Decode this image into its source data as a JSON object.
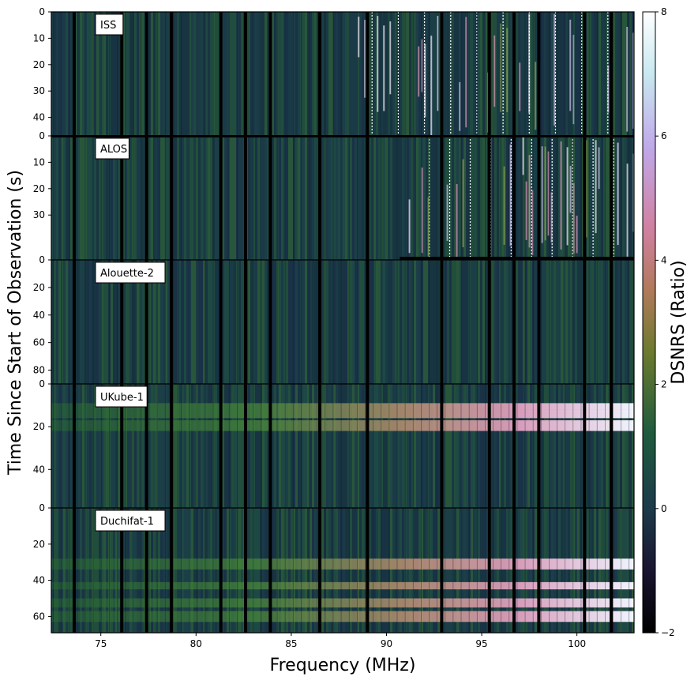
{
  "chart_data": {
    "type": "heatmap",
    "xlabel": "Frequency (MHz)",
    "ylabel": "Time Since Start of Observation (s)",
    "colorbar_label": "DSNRS (Ratio)",
    "colormap": "cubehelix",
    "color_range": [
      -2,
      8
    ],
    "colorbar_ticks": [
      "8",
      "6",
      "4",
      "2",
      "0",
      "−2"
    ],
    "x_range": [
      72.4,
      103.0
    ],
    "x_ticks": [
      "75",
      "80",
      "85",
      "90",
      "95",
      "100"
    ],
    "x_tick_values": [
      75,
      80,
      85,
      90,
      95,
      100
    ],
    "flagged_channels_mhz": [
      73.6,
      76.1,
      77.4,
      78.7,
      81.3,
      82.6,
      83.9,
      86.5,
      89.0,
      92.9,
      95.4,
      96.7,
      98.0,
      100.4,
      101.8
    ],
    "panels": [
      {
        "name": "ISS",
        "y_range": [
          0,
          47
        ],
        "y_ticks": [
          "0",
          "10",
          "20",
          "30",
          "40"
        ],
        "y_tick_values": [
          0,
          10,
          20,
          30,
          40
        ],
        "horizontal_bands": [],
        "vertical_bursts_from_mhz": 88.0
      },
      {
        "name": "ALOS",
        "y_range": [
          0,
          47
        ],
        "y_ticks": [
          "0",
          "10",
          "20",
          "30"
        ],
        "y_tick_values": [
          0,
          10,
          20,
          30
        ],
        "horizontal_bands": [],
        "vertical_bursts_from_mhz": 91.0
      },
      {
        "name": "Alouette-2",
        "y_range": [
          0,
          90
        ],
        "y_ticks": [
          "0",
          "20",
          "40",
          "60",
          "80"
        ],
        "y_tick_values": [
          0,
          20,
          40,
          60,
          80
        ],
        "horizontal_bands": [],
        "vertical_bursts_from_mhz": null
      },
      {
        "name": "UKube-1",
        "y_range": [
          0,
          58
        ],
        "y_ticks": [
          "0",
          "20",
          "40"
        ],
        "y_tick_values": [
          0,
          20,
          40
        ],
        "horizontal_bands": [
          [
            9,
            12
          ],
          [
            12,
            16
          ],
          [
            17,
            22
          ]
        ],
        "vertical_bursts_from_mhz": null
      },
      {
        "name": "Duchifat-1",
        "y_range": [
          0,
          69
        ],
        "y_ticks": [
          "0",
          "20",
          "40",
          "60"
        ],
        "y_tick_values": [
          0,
          20,
          40,
          60
        ],
        "horizontal_bands": [
          [
            28,
            34
          ],
          [
            41,
            45
          ],
          [
            50,
            55
          ],
          [
            57,
            63
          ]
        ],
        "vertical_bursts_from_mhz": null
      }
    ]
  }
}
